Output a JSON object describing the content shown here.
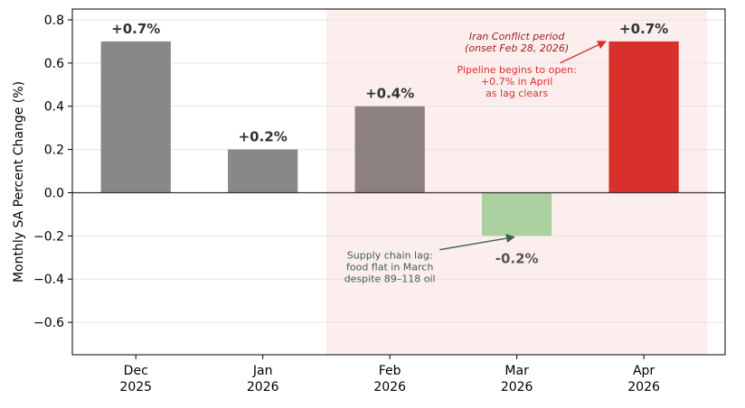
{
  "chart_data": {
    "type": "bar",
    "categories": [
      {
        "line1": "Dec",
        "line2": "2025"
      },
      {
        "line1": "Jan",
        "line2": "2026"
      },
      {
        "line1": "Feb",
        "line2": "2026"
      },
      {
        "line1": "Mar",
        "line2": "2026"
      },
      {
        "line1": "Apr",
        "line2": "2026"
      }
    ],
    "values": [
      0.7,
      0.2,
      0.4,
      -0.2,
      0.7
    ],
    "bar_labels": [
      "+0.7%",
      "+0.2%",
      "+0.4%",
      "-0.2%",
      "+0.7%"
    ],
    "bar_colors": [
      "#888888",
      "#888888",
      "#8c8180",
      "#abd1a0",
      "#d8302a"
    ],
    "bar_label_colors": [
      "#333333",
      "#333333",
      "#333333",
      "#555555",
      "#333333"
    ],
    "ylabel": "Monthly SA Percent Change (%)",
    "ylim": [
      -0.75,
      0.85
    ],
    "yticks": [
      {
        "value": -0.6,
        "label": "−0.6"
      },
      {
        "value": -0.4,
        "label": "−0.4"
      },
      {
        "value": -0.2,
        "label": "−0.2"
      },
      {
        "value": 0.0,
        "label": "0.0"
      },
      {
        "value": 0.2,
        "label": "0.2"
      },
      {
        "value": 0.4,
        "label": "0.4"
      },
      {
        "value": 0.6,
        "label": "0.6"
      },
      {
        "value": 0.8,
        "label": "0.8"
      }
    ],
    "grid": true,
    "shaded_region": {
      "from_index": 1.5,
      "to_index": 4.5,
      "color": "#fdeeee"
    },
    "annotations": [
      {
        "lines": [
          "Iran Conflict period",
          "(onset Feb 28, 2026)"
        ],
        "color": "#9a1c1c",
        "italic": true,
        "x": 3.0,
        "y": 0.68
      },
      {
        "lines": [
          "Pipeline begins to open:",
          "+0.7% in April",
          "as lag clears"
        ],
        "color": "#d8302a",
        "italic": false,
        "x": 3.0,
        "y": 0.5,
        "arrow_to": {
          "x": 3.7,
          "y": 0.7
        }
      },
      {
        "lines": [
          "Supply chain lag:",
          "food flat in March",
          "despite 89–118 oil"
        ],
        "color": "#3f5f4a",
        "italic": false,
        "x": 2.0,
        "y": -0.36,
        "arrow_to": {
          "x": 2.98,
          "y": -0.205
        }
      }
    ]
  }
}
